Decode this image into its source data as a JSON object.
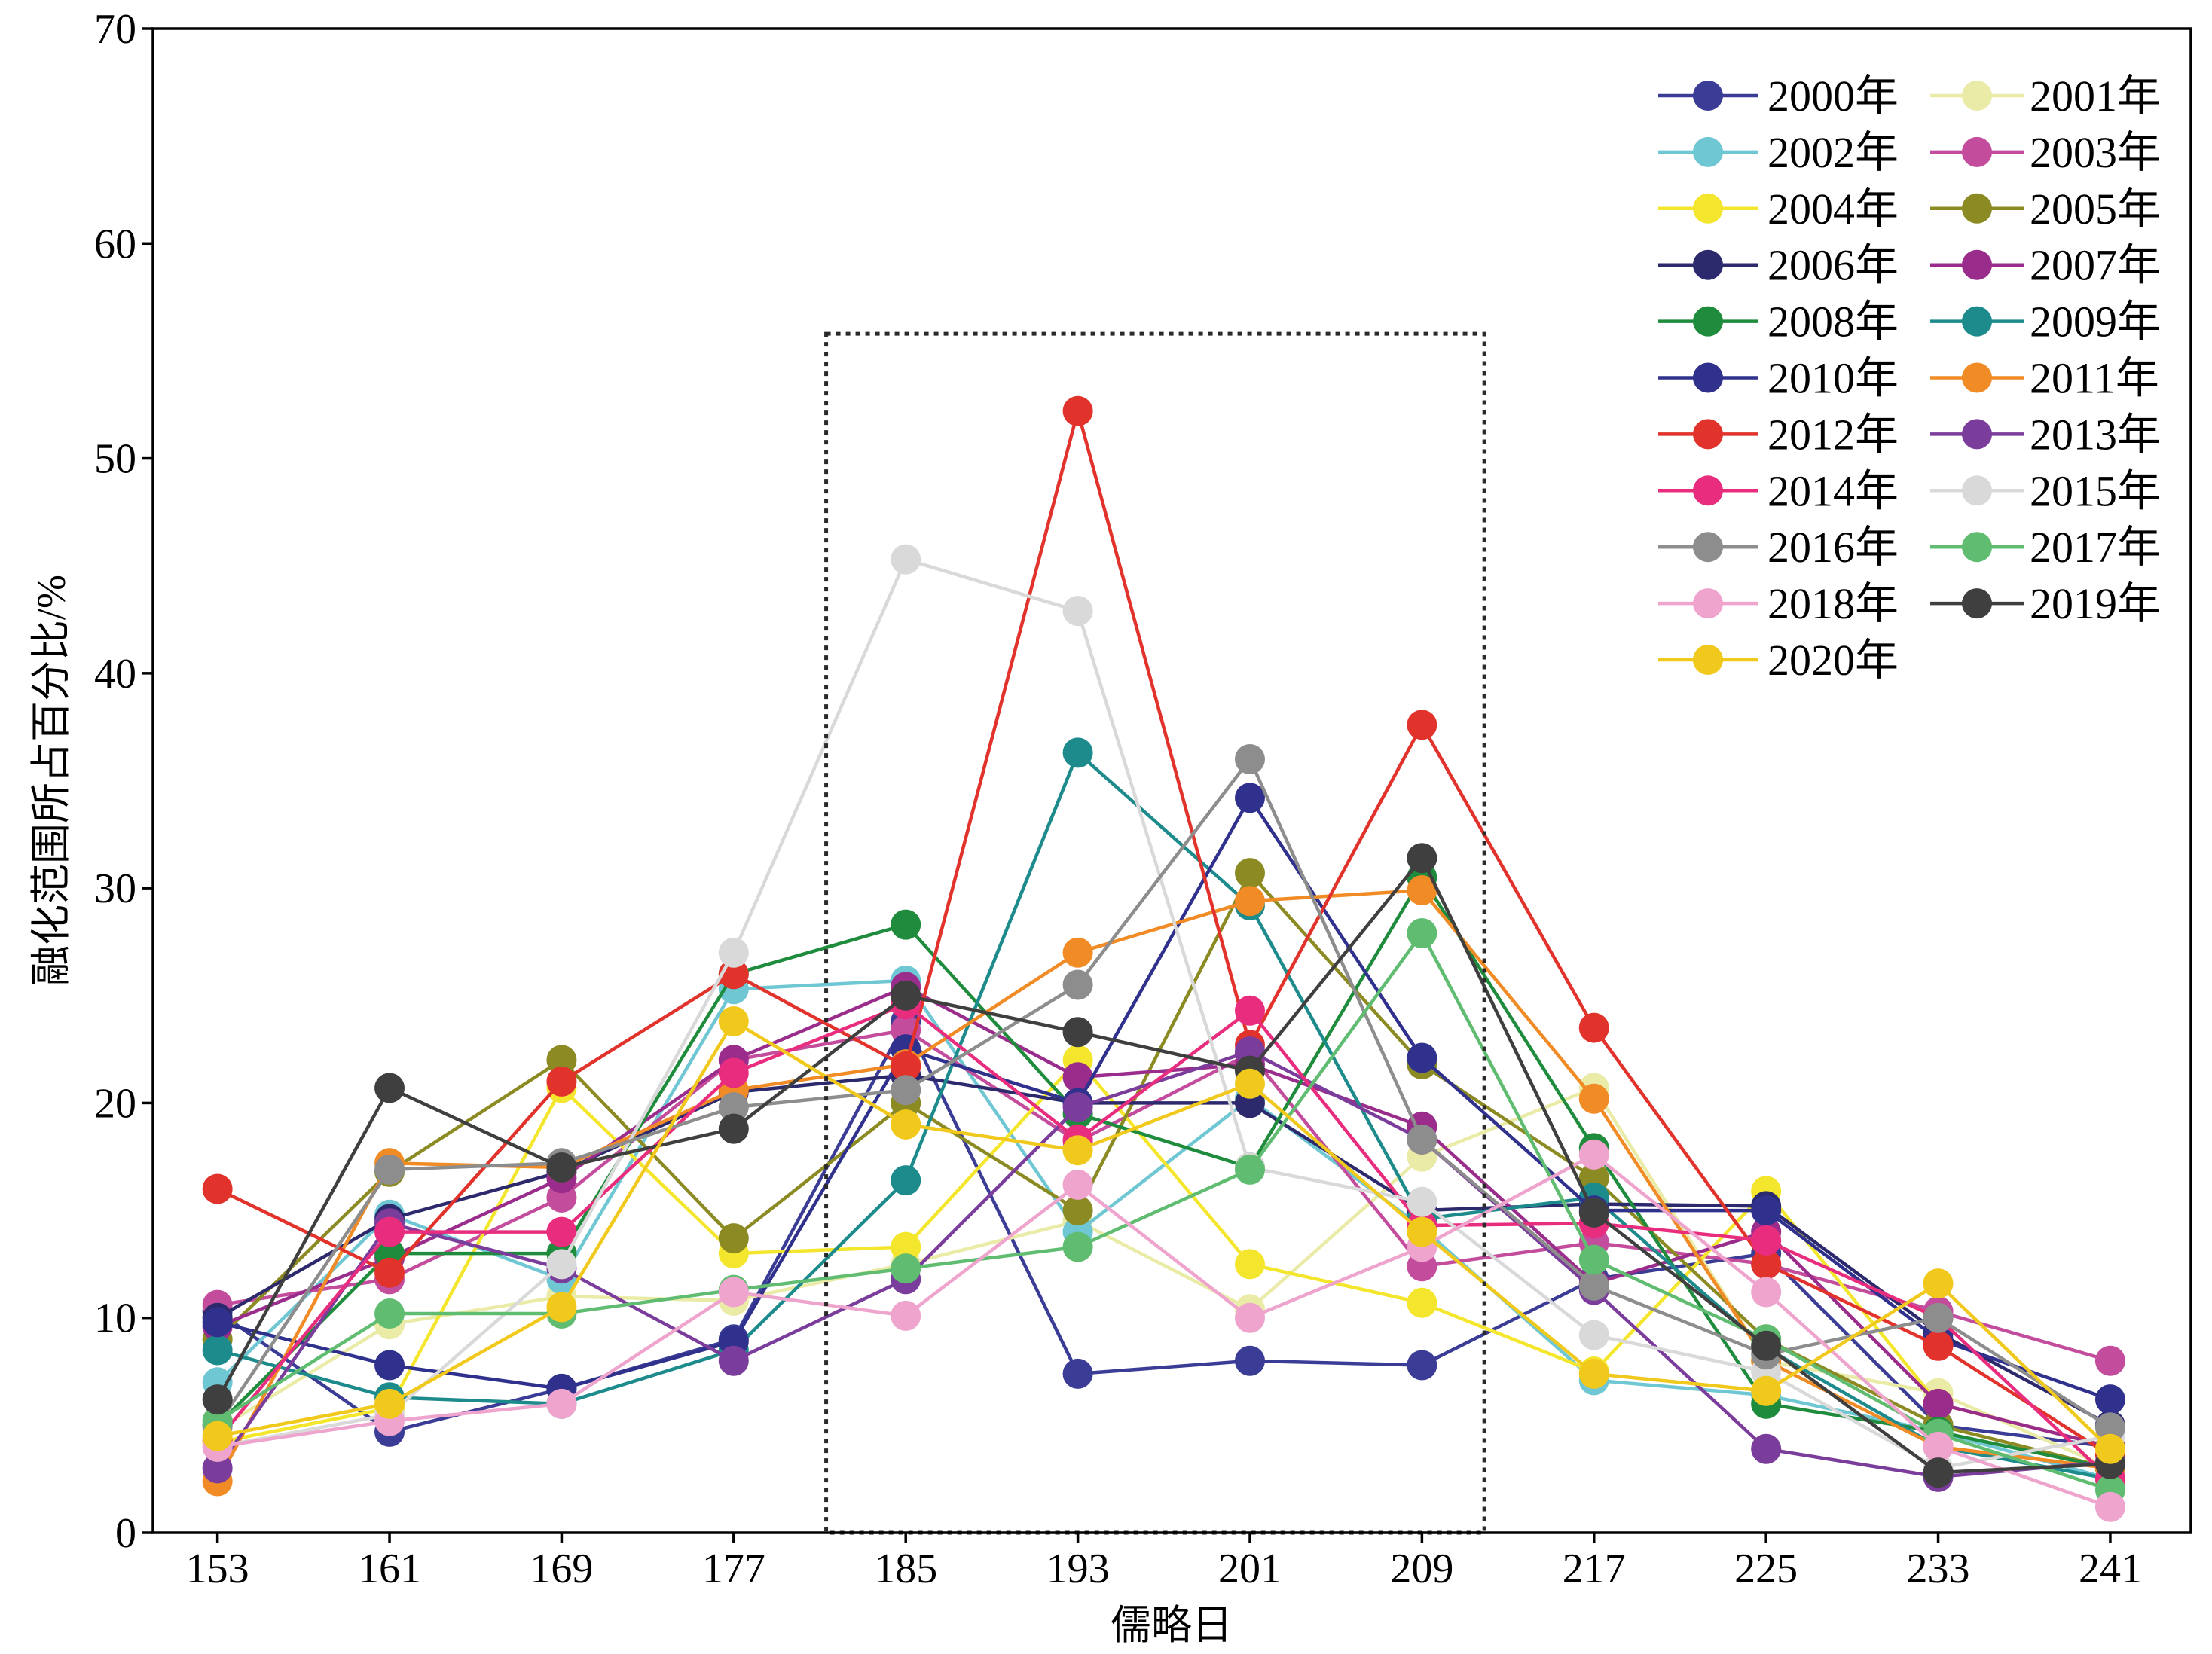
{
  "chart_data": {
    "type": "line",
    "xlabel": "儒略日",
    "ylabel": "融化范围所占百分比/%",
    "x": [
      153,
      161,
      169,
      177,
      185,
      193,
      201,
      209,
      217,
      225,
      233,
      241
    ],
    "xlim": [
      150,
      244.75
    ],
    "ylim": [
      0,
      70
    ],
    "yticks": [
      0,
      10,
      20,
      30,
      40,
      50,
      60,
      70
    ],
    "grid": false,
    "legend_position": "top-right",
    "highlight_box": {
      "style": "dotted",
      "x": [
        181.3,
        211.9
      ],
      "y": [
        0,
        55.8
      ]
    },
    "series": [
      {
        "name": "2000年",
        "color": "#3A3C95",
        "values": [
          10.3,
          4.7,
          6.7,
          9.0,
          23.8,
          7.4,
          8.0,
          7.8,
          11.8,
          13.0,
          5.0,
          4.0
        ]
      },
      {
        "name": "2001年",
        "color": "#E9EBA6",
        "values": [
          4.8,
          9.7,
          11.0,
          10.8,
          12.5,
          14.5,
          10.4,
          17.5,
          20.7,
          8.0,
          6.5,
          3.0
        ]
      },
      {
        "name": "2002年",
        "color": "#6FC7D3",
        "values": [
          7.0,
          14.8,
          11.8,
          25.3,
          25.7,
          14.0,
          20.2,
          14.2,
          7.1,
          6.4,
          4.7,
          2.5
        ]
      },
      {
        "name": "2003年",
        "color": "#C44C9C",
        "values": [
          10.6,
          11.8,
          15.6,
          22.0,
          23.4,
          18.2,
          22.3,
          12.4,
          13.5,
          12.5,
          10.3,
          8.0
        ]
      },
      {
        "name": "2004年",
        "color": "#F3E62C",
        "values": [
          4.2,
          5.8,
          20.7,
          13.0,
          13.3,
          22.0,
          12.5,
          10.7,
          7.5,
          15.9,
          6.0,
          4.0
        ]
      },
      {
        "name": "2005年",
        "color": "#8B8A23",
        "values": [
          9.0,
          16.8,
          22.0,
          13.7,
          20.0,
          15.0,
          30.7,
          21.8,
          16.5,
          9.0,
          5.0,
          3.0
        ]
      },
      {
        "name": "2006年",
        "color": "#2C2A6D",
        "values": [
          10.0,
          14.6,
          16.8,
          20.5,
          21.3,
          20.0,
          20.0,
          15.0,
          15.3,
          15.2,
          9.3,
          5.0
        ]
      },
      {
        "name": "2007年",
        "color": "#9A2D8C",
        "values": [
          9.6,
          12.8,
          16.5,
          22.0,
          25.4,
          21.2,
          21.8,
          18.9,
          11.6,
          14.0,
          6.0,
          4.0
        ]
      },
      {
        "name": "2008年",
        "color": "#1F8B3C",
        "values": [
          5.0,
          13.0,
          13.0,
          26.0,
          28.3,
          19.5,
          17.0,
          30.5,
          17.9,
          6.0,
          4.7,
          3.0
        ]
      },
      {
        "name": "2009年",
        "color": "#1D8A8B",
        "values": [
          8.5,
          6.3,
          6.0,
          8.5,
          16.4,
          36.3,
          29.2,
          14.6,
          15.6,
          8.6,
          4.0,
          2.5
        ]
      },
      {
        "name": "2010年",
        "color": "#30308D",
        "values": [
          9.8,
          7.8,
          6.7,
          8.9,
          22.5,
          20.0,
          34.2,
          22.1,
          15.0,
          15.0,
          9.0,
          6.2
        ]
      },
      {
        "name": "2011年",
        "color": "#F08B26",
        "values": [
          2.4,
          17.2,
          17.0,
          20.6,
          21.8,
          27.0,
          29.4,
          29.9,
          20.2,
          8.0,
          4.0,
          3.0
        ]
      },
      {
        "name": "2012年",
        "color": "#E1322B",
        "values": [
          16.0,
          12.1,
          21.0,
          26.0,
          21.7,
          52.2,
          22.7,
          37.6,
          23.5,
          12.5,
          8.7,
          3.6
        ]
      },
      {
        "name": "2013年",
        "color": "#7B3D9C",
        "values": [
          3.0,
          14.4,
          12.3,
          8.0,
          11.8,
          19.8,
          22.4,
          18.3,
          11.3,
          3.9,
          2.6,
          3.3
        ]
      },
      {
        "name": "2014年",
        "color": "#E92D7E",
        "values": [
          4.3,
          14.0,
          14.0,
          21.4,
          24.6,
          18.3,
          24.3,
          14.3,
          14.4,
          13.6,
          10.0,
          2.5
        ]
      },
      {
        "name": "2015年",
        "color": "#D9D9D9",
        "values": [
          4.0,
          5.5,
          12.5,
          27.0,
          45.3,
          42.9,
          17.0,
          15.4,
          9.2,
          7.5,
          3.0,
          4.5
        ]
      },
      {
        "name": "2016年",
        "color": "#8D8D8D",
        "values": [
          5.0,
          16.9,
          17.2,
          19.8,
          20.6,
          25.5,
          36.0,
          18.3,
          11.5,
          8.3,
          10.0,
          4.9
        ]
      },
      {
        "name": "2017年",
        "color": "#5FBC70",
        "values": [
          5.2,
          10.2,
          10.2,
          11.3,
          12.3,
          13.3,
          16.9,
          27.9,
          12.7,
          9.0,
          4.6,
          2.0
        ]
      },
      {
        "name": "2018年",
        "color": "#EEA4CC",
        "values": [
          4.0,
          5.2,
          6.0,
          11.2,
          10.1,
          16.2,
          10.0,
          13.3,
          17.6,
          11.2,
          4.0,
          1.2
        ]
      },
      {
        "name": "2019年",
        "color": "#3F3F3F",
        "values": [
          6.2,
          20.7,
          17.0,
          18.8,
          25.0,
          23.3,
          21.5,
          31.4,
          14.9,
          8.7,
          2.8,
          3.2
        ]
      },
      {
        "name": "2020年",
        "color": "#F1C91D",
        "values": [
          4.5,
          6.0,
          10.5,
          23.8,
          19.0,
          17.8,
          20.9,
          14.0,
          7.4,
          6.6,
          11.6,
          3.9
        ]
      }
    ]
  }
}
